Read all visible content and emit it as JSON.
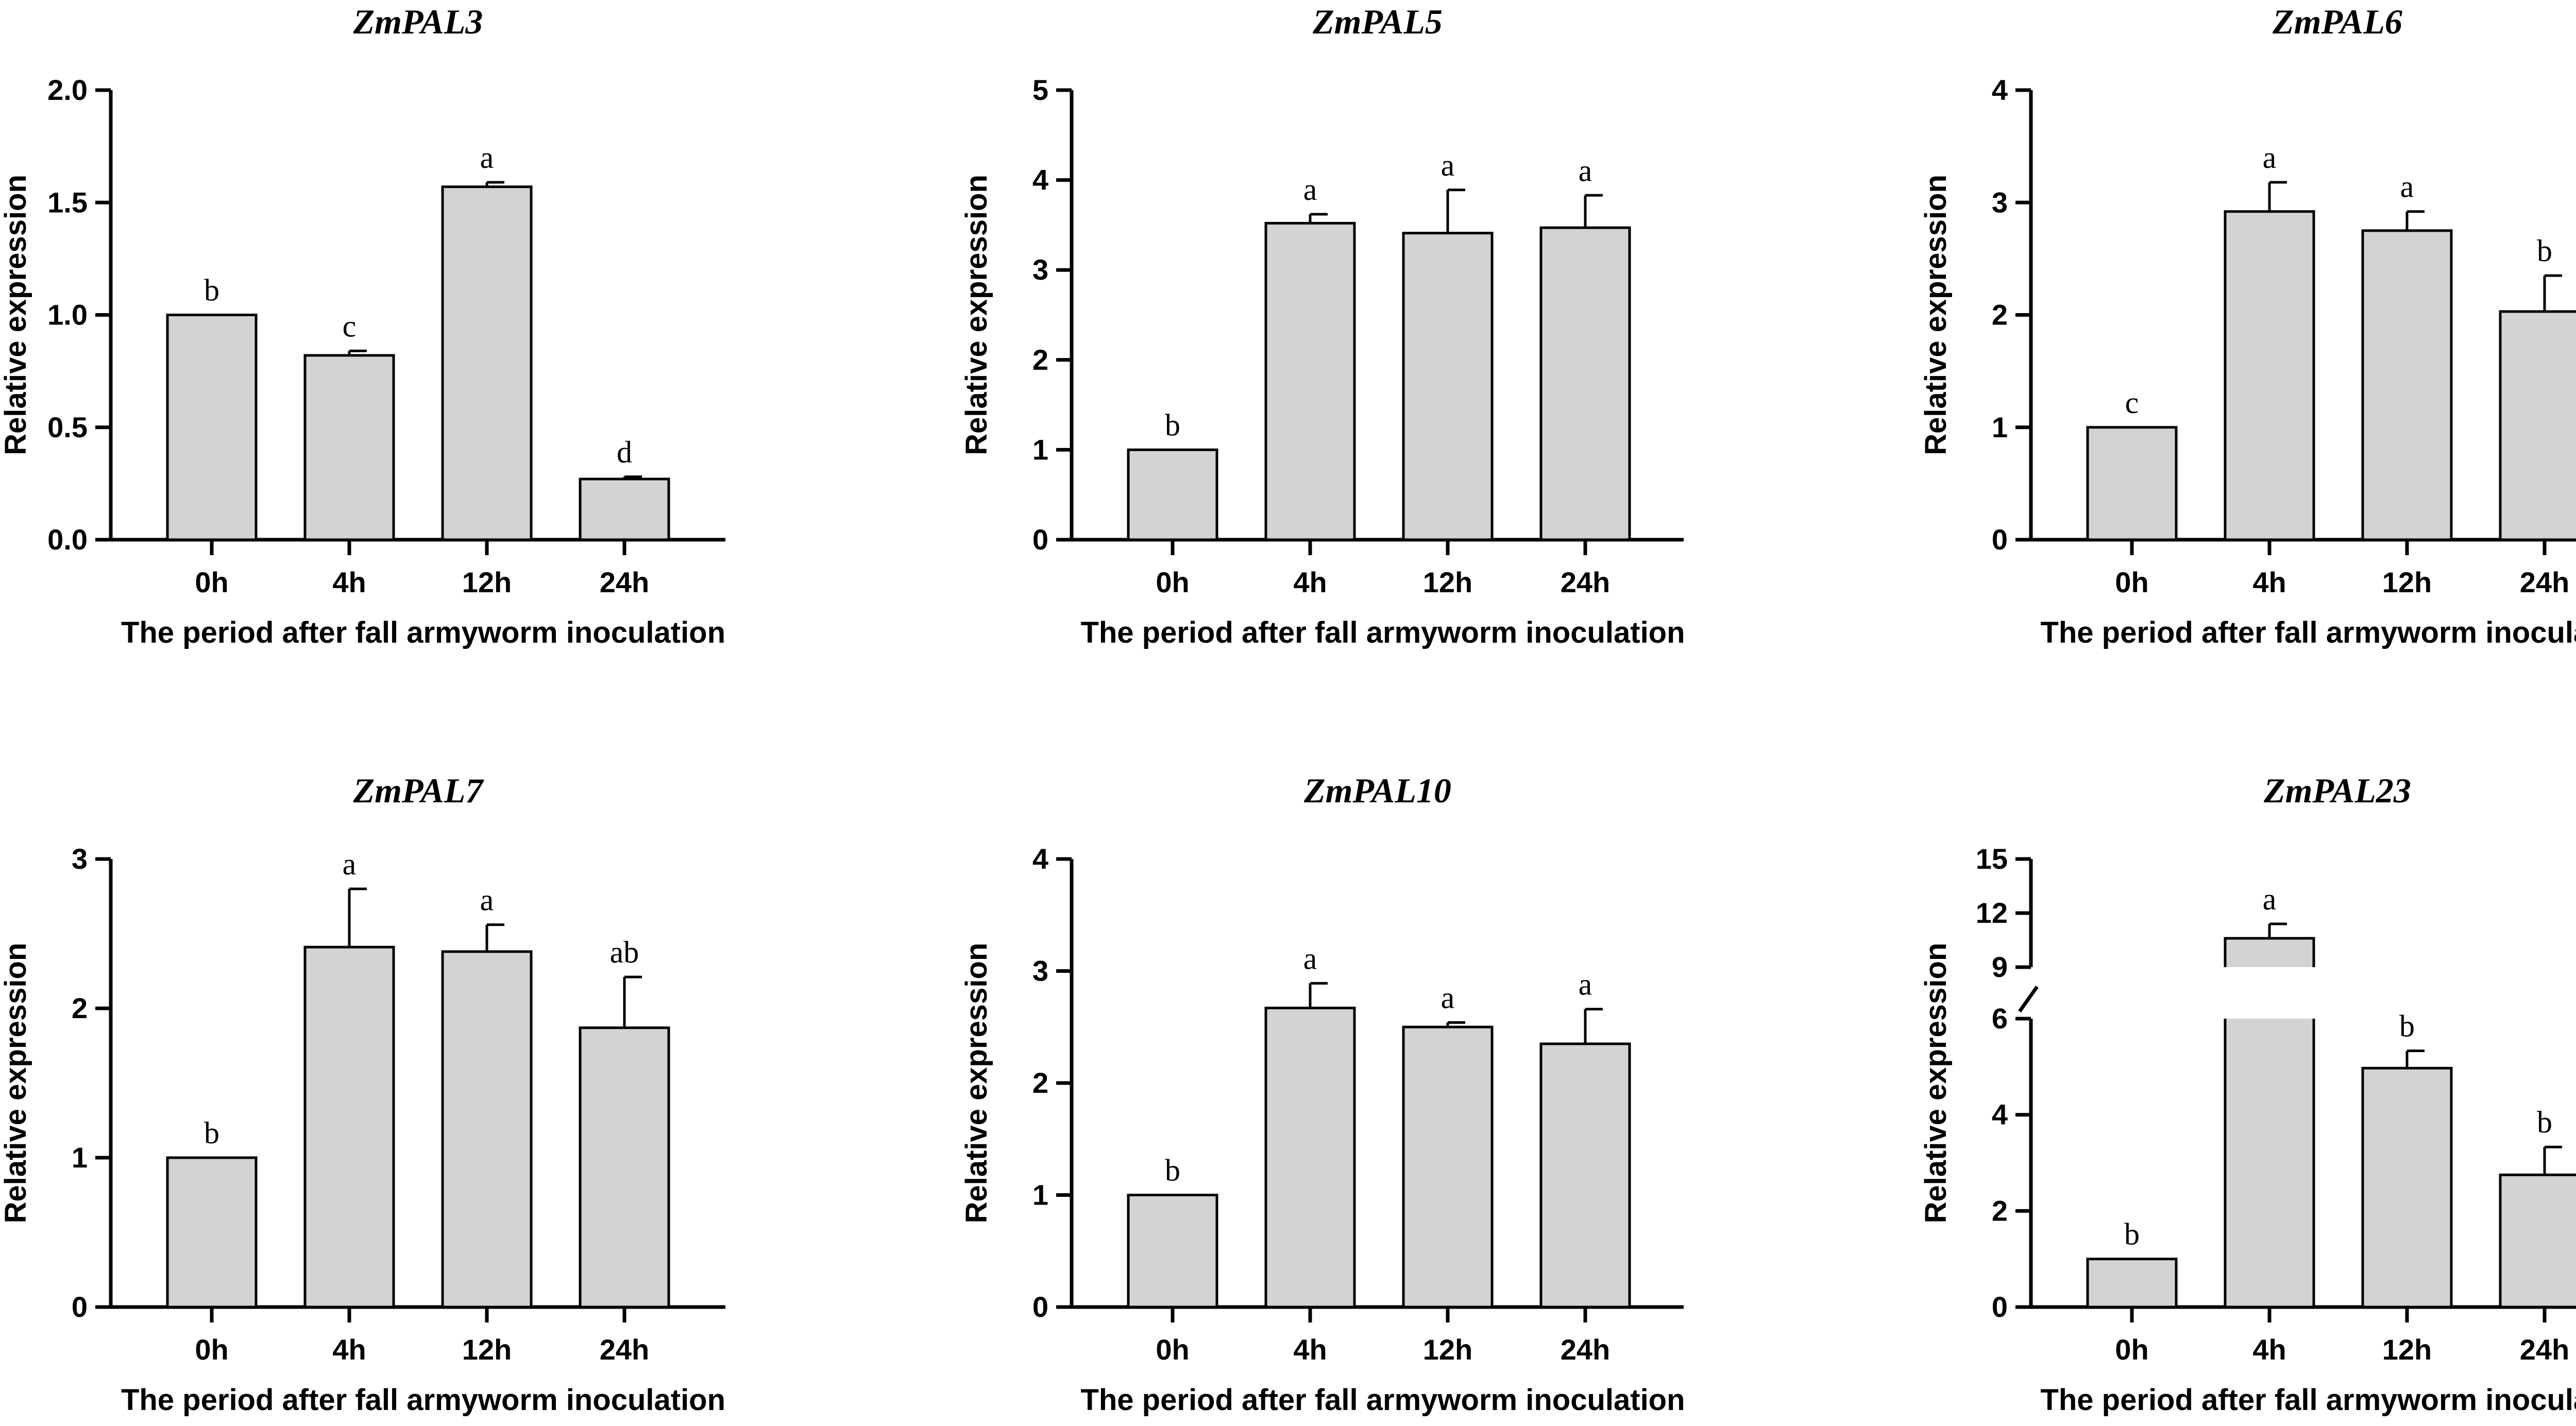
{
  "chart_data": [
    {
      "type": "bar",
      "title": "ZmPAL3",
      "xlabel": "The period after fall armyworm inoculation",
      "ylabel": "Relative expression",
      "categories": [
        "0h",
        "4h",
        "12h",
        "24h"
      ],
      "values": [
        1.0,
        0.82,
        1.57,
        0.27
      ],
      "errors": [
        0.0,
        0.02,
        0.02,
        0.01
      ],
      "significance": [
        "b",
        "c",
        "a",
        "d"
      ],
      "ylim": [
        0,
        2.0
      ],
      "yticks": [
        0,
        0.5,
        1.0,
        1.5,
        2.0
      ],
      "ytick_labels": [
        "0.0",
        "0.5",
        "1.0",
        "1.5",
        "2.0"
      ],
      "bar_color": "#d3d3d3"
    },
    {
      "type": "bar",
      "title": "ZmPAL5",
      "xlabel": "The period after fall armyworm inoculation",
      "ylabel": "Relative expression",
      "categories": [
        "0h",
        "4h",
        "12h",
        "24h"
      ],
      "values": [
        1.0,
        3.52,
        3.41,
        3.47
      ],
      "errors": [
        0.0,
        0.1,
        0.48,
        0.36
      ],
      "significance": [
        "b",
        "a",
        "a",
        "a"
      ],
      "ylim": [
        0,
        5
      ],
      "yticks": [
        0,
        1,
        2,
        3,
        4,
        5
      ],
      "ytick_labels": [
        "0",
        "1",
        "2",
        "3",
        "4",
        "5"
      ],
      "bar_color": "#d3d3d3"
    },
    {
      "type": "bar",
      "title": "ZmPAL6",
      "xlabel": "The period after fall armyworm inoculation",
      "ylabel": "Relative expression",
      "categories": [
        "0h",
        "4h",
        "12h",
        "24h"
      ],
      "values": [
        1.0,
        2.92,
        2.75,
        2.03
      ],
      "errors": [
        0.0,
        0.26,
        0.17,
        0.32
      ],
      "significance": [
        "c",
        "a",
        "a",
        "b"
      ],
      "ylim": [
        0,
        4
      ],
      "yticks": [
        0,
        1,
        2,
        3,
        4
      ],
      "ytick_labels": [
        "0",
        "1",
        "2",
        "3",
        "4"
      ],
      "bar_color": "#d3d3d3"
    },
    {
      "type": "bar",
      "title": "ZmPAL7",
      "xlabel": "The period after fall armyworm inoculation",
      "ylabel": "Relative expression",
      "categories": [
        "0h",
        "4h",
        "12h",
        "24h"
      ],
      "values": [
        1.0,
        2.41,
        2.38,
        1.87
      ],
      "errors": [
        0.0,
        0.39,
        0.18,
        0.34
      ],
      "significance": [
        "b",
        "a",
        "a",
        "ab"
      ],
      "ylim": [
        0,
        3
      ],
      "yticks": [
        0,
        1,
        2,
        3
      ],
      "ytick_labels": [
        "0",
        "1",
        "2",
        "3"
      ],
      "bar_color": "#d3d3d3"
    },
    {
      "type": "bar",
      "title": "ZmPAL10",
      "xlabel": "The period after fall armyworm inoculation",
      "ylabel": "Relative expression",
      "categories": [
        "0h",
        "4h",
        "12h",
        "24h"
      ],
      "values": [
        1.0,
        2.67,
        2.5,
        2.35
      ],
      "errors": [
        0.0,
        0.22,
        0.04,
        0.31
      ],
      "significance": [
        "b",
        "a",
        "a",
        "a"
      ],
      "ylim": [
        0,
        4
      ],
      "yticks": [
        0,
        1,
        2,
        3,
        4
      ],
      "ytick_labels": [
        "0",
        "1",
        "2",
        "3",
        "4"
      ],
      "bar_color": "#d3d3d3"
    },
    {
      "type": "bar",
      "title": "ZmPAL23",
      "xlabel": "The period after fall armyworm inoculation",
      "ylabel": "Relative expression",
      "categories": [
        "0h",
        "4h",
        "12h",
        "24h"
      ],
      "values": [
        1.0,
        10.6,
        4.97,
        2.75
      ],
      "errors": [
        0.0,
        0.8,
        0.36,
        0.58
      ],
      "significance": [
        "b",
        "a",
        "b",
        "b"
      ],
      "broken_axis": {
        "lower": [
          0,
          6
        ],
        "upper": [
          9,
          15
        ],
        "lower_ticks": [
          0,
          2,
          4,
          6
        ],
        "upper_ticks": [
          9,
          12,
          15
        ]
      },
      "bar_color": "#d3d3d3"
    }
  ]
}
